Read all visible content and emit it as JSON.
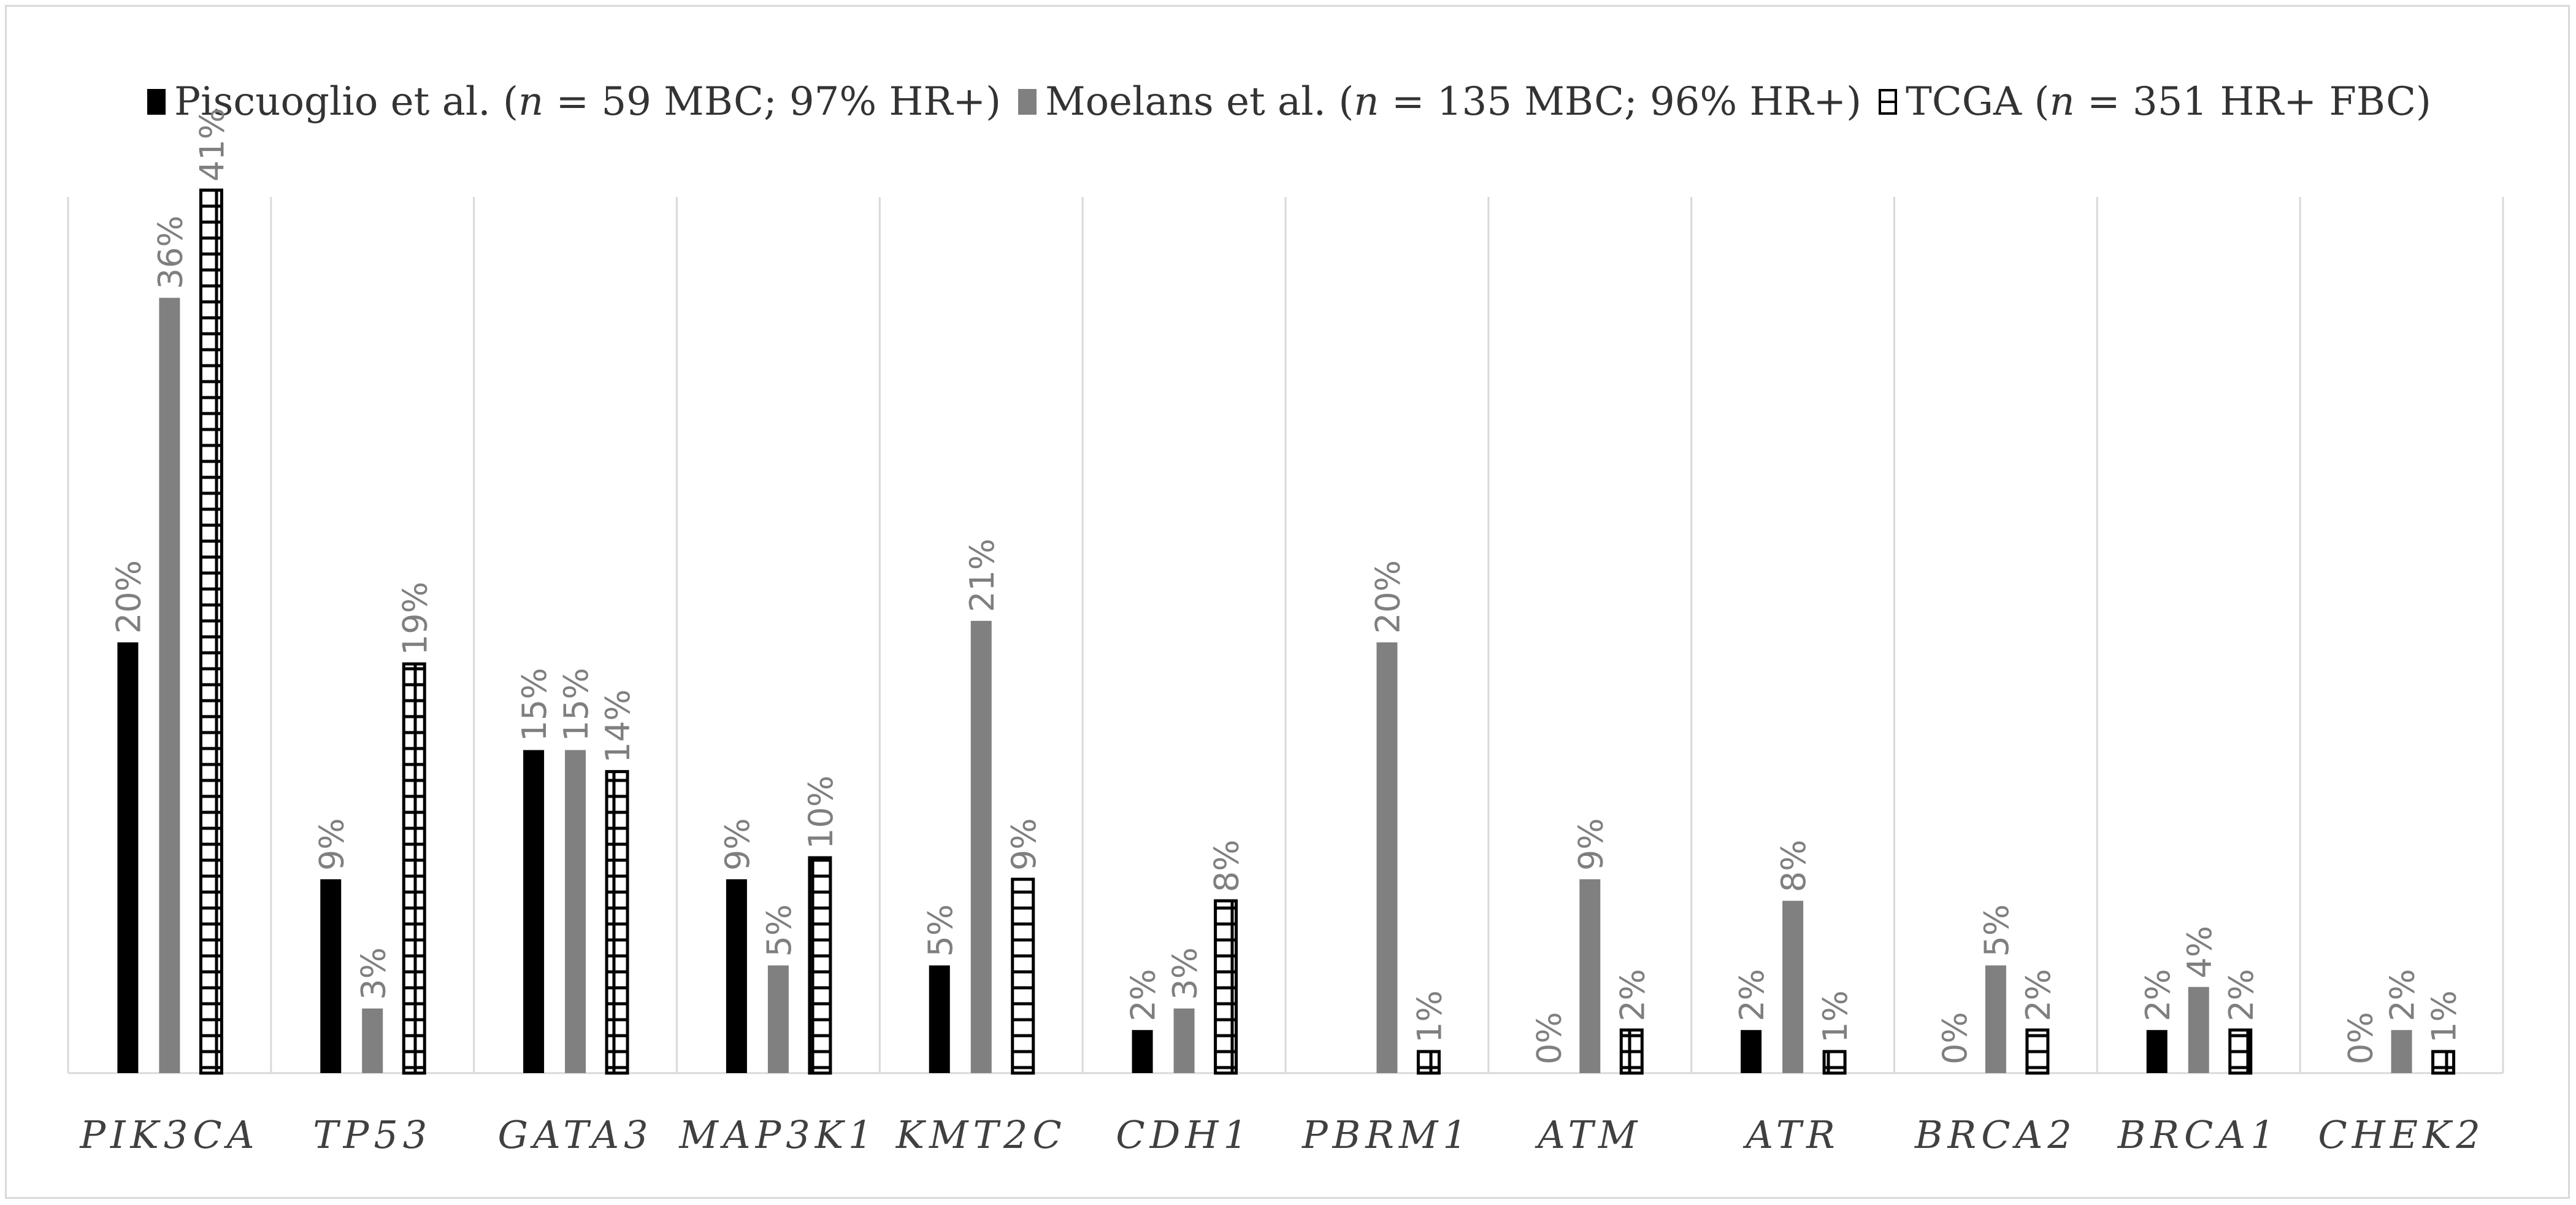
{
  "chart_data": {
    "type": "bar",
    "categories": [
      "PIK3CA",
      "TP53",
      "GATA3",
      "MAP3K1",
      "KMT2C",
      "CDH1",
      "PBRM1",
      "ATM",
      "ATR",
      "BRCA2",
      "BRCA1",
      "CHEK2"
    ],
    "series": [
      {
        "name_prefix": "Piscuoglio et al. (",
        "name_italic": "n",
        "name_suffix": " = 59 MBC; 97% HR+)",
        "name": "Piscuoglio et al. (n = 59 MBC; 97% HR+)",
        "color": "#000000",
        "values": [
          20,
          9,
          15,
          9,
          5,
          2,
          null,
          0,
          2,
          0,
          2,
          0
        ],
        "labels": [
          "20%",
          "9%",
          "15%",
          "9%",
          "5%",
          "2%",
          "",
          "0%",
          "2%",
          "0%",
          "2%",
          "0%"
        ]
      },
      {
        "name_prefix": "Moelans et al. (",
        "name_italic": "n",
        "name_suffix": " = 135 MBC; 96% HR+)",
        "name": "Moelans et al. (n = 135 MBC; 96% HR+)",
        "color": "#808080",
        "values": [
          36,
          3,
          15,
          5,
          21,
          3,
          20,
          9,
          8,
          5,
          4,
          2
        ],
        "labels": [
          "36%",
          "3%",
          "15%",
          "5%",
          "21%",
          "3%",
          "20%",
          "9%",
          "8%",
          "5%",
          "4%",
          "2%"
        ]
      },
      {
        "name_prefix": "TCGA (",
        "name_italic": "n",
        "name_suffix": " = 351 HR+ FBC)",
        "name": "TCGA (n = 351 HR+ FBC)",
        "color": "#000000",
        "values": [
          41,
          19,
          14,
          10,
          9,
          8,
          1,
          2,
          1,
          2,
          2,
          1
        ],
        "labels": [
          "41%",
          "19%",
          "14%",
          "10%",
          "9%",
          "8%",
          "1%",
          "2%",
          "1%",
          "2%",
          "2%",
          "1%"
        ]
      }
    ],
    "title": "",
    "xlabel": "",
    "ylabel": "",
    "ylim": [
      0,
      45
    ],
    "grid": "vertical category separators",
    "legend": "top-center"
  }
}
